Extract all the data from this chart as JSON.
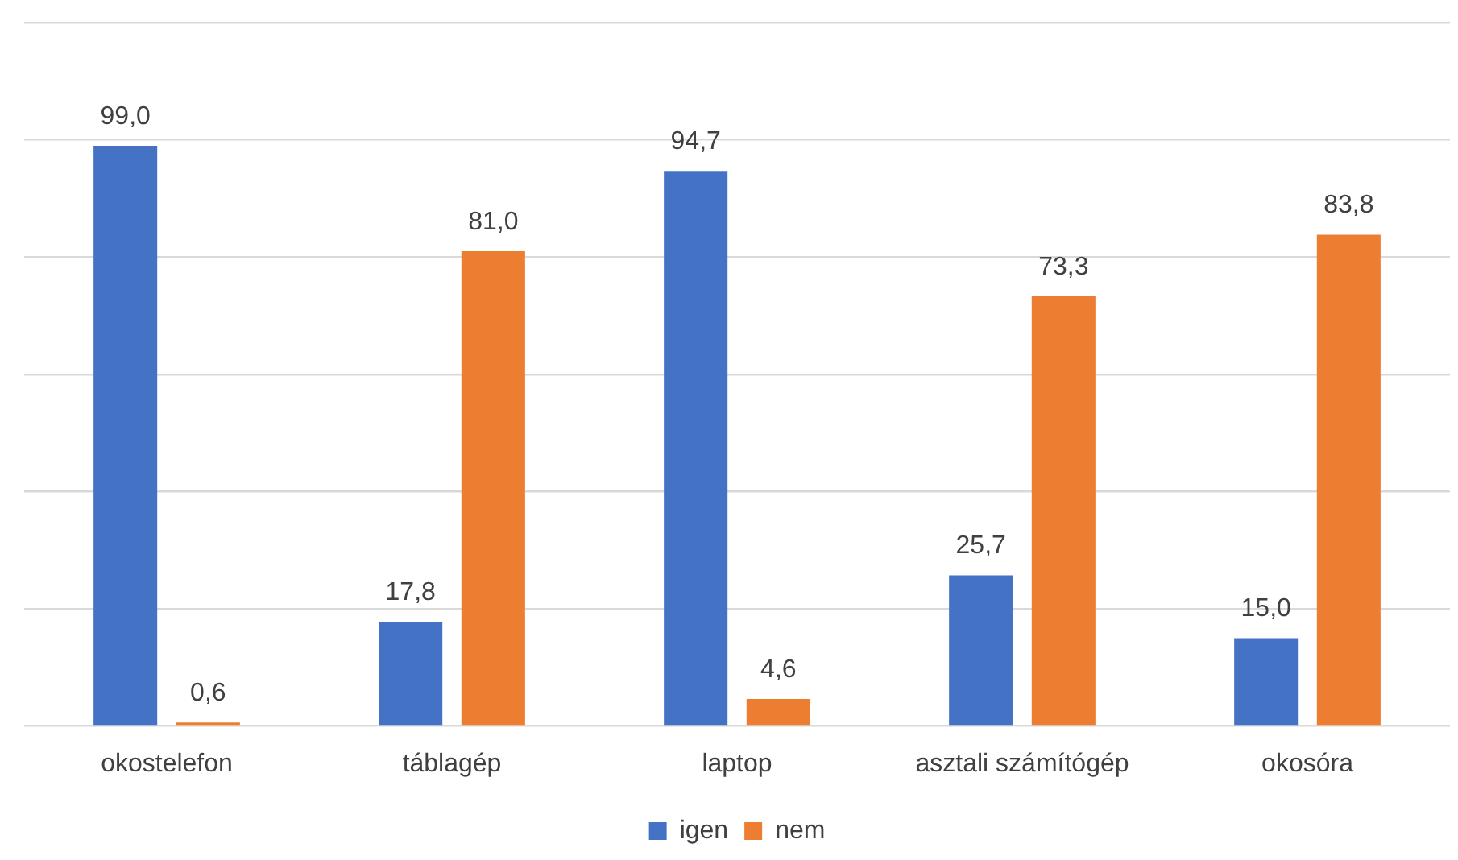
{
  "chart_data": {
    "type": "bar",
    "categories": [
      "okostelefon",
      "táblagép",
      "laptop",
      "asztali számítógép",
      "okosóra"
    ],
    "series": [
      {
        "name": "igen",
        "color": "#4472c4",
        "values": [
          99.0,
          17.8,
          94.7,
          25.7,
          15.0
        ],
        "value_labels": [
          "99,0",
          "17,8",
          "94,7",
          "25,7",
          "15,0"
        ]
      },
      {
        "name": "nem",
        "color": "#ed7d31",
        "values": [
          0.6,
          81.0,
          4.6,
          73.3,
          83.8
        ],
        "value_labels": [
          "0,6",
          "81,0",
          "4,6",
          "73,3",
          "83,8"
        ]
      }
    ],
    "ylim": [
      0,
      120
    ],
    "yticks": [
      {
        "value": 0,
        "label": null
      },
      {
        "value": 20,
        "label": null
      },
      {
        "value": 40,
        "label": null
      },
      {
        "value": 60,
        "label": null
      },
      {
        "value": 80,
        "label": null
      },
      {
        "value": 100,
        "label": null
      },
      {
        "value": 120,
        "label": null
      }
    ],
    "tick_labels": "x",
    "grid": "y",
    "legend": "bottom"
  }
}
